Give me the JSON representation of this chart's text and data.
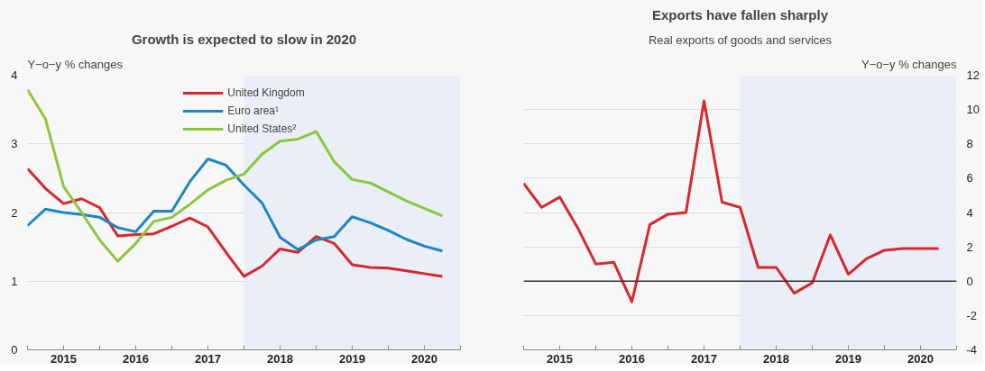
{
  "chart_data": [
    {
      "type": "line",
      "title": "Growth is expected to slow in 2020",
      "ylabel": "Y−o−y % changes",
      "legend": "top",
      "grid": "y",
      "line_style": "solid",
      "marker": "none",
      "x": [
        2015,
        2015.25,
        2015.5,
        2015.75,
        2016,
        2016.25,
        2016.5,
        2016.75,
        2017,
        2017.25,
        2017.5,
        2017.75,
        2018,
        2018.25,
        2018.5,
        2018.75,
        2019,
        2019.25,
        2019.5,
        2019.75,
        2020,
        2020.25,
        2020.5,
        2020.75
      ],
      "xlim": [
        2015,
        2021
      ],
      "xticks": [
        {
          "value": 2015,
          "label": null
        },
        {
          "value": 2015.5,
          "label": "2015"
        },
        {
          "value": 2016,
          "label": null
        },
        {
          "value": 2016.5,
          "label": "2016"
        },
        {
          "value": 2017,
          "label": null
        },
        {
          "value": 2017.5,
          "label": "2017"
        },
        {
          "value": 2018,
          "label": null
        },
        {
          "value": 2018.5,
          "label": "2018"
        },
        {
          "value": 2019,
          "label": null
        },
        {
          "value": 2019.5,
          "label": "2019"
        },
        {
          "value": 2020,
          "label": null
        },
        {
          "value": 2020.5,
          "label": "2020"
        },
        {
          "value": 2021,
          "label": null
        }
      ],
      "ylim": [
        0,
        4
      ],
      "yticks": [
        0,
        1,
        2,
        3,
        4
      ],
      "bands": [
        {
          "axis": "x",
          "from": 2018,
          "to": 2021,
          "label": null,
          "color": "#e9eef7"
        }
      ],
      "series": [
        {
          "name": "United Kingdom",
          "color": "#d7272f",
          "values": [
            2.64,
            2.35,
            2.13,
            2.2,
            2.07,
            1.66,
            1.68,
            1.69,
            1.8,
            1.92,
            1.79,
            1.42,
            1.07,
            1.22,
            1.47,
            1.42,
            1.65,
            1.55,
            1.24,
            1.2,
            1.19,
            1.15,
            1.11,
            1.07
          ]
        },
        {
          "name": "Euro area¹",
          "color": "#1f87c0",
          "values": [
            1.81,
            2.05,
            2.0,
            1.97,
            1.93,
            1.78,
            1.72,
            2.02,
            2.02,
            2.45,
            2.78,
            2.69,
            2.4,
            2.14,
            1.64,
            1.46,
            1.6,
            1.65,
            1.94,
            1.85,
            1.74,
            1.61,
            1.51,
            1.44
          ]
        },
        {
          "name": "United States²",
          "color": "#8cc63f",
          "values": [
            3.79,
            3.36,
            2.38,
            2.0,
            1.6,
            1.29,
            1.55,
            1.87,
            1.93,
            2.12,
            2.33,
            2.47,
            2.56,
            2.85,
            3.04,
            3.07,
            3.18,
            2.74,
            2.48,
            2.43,
            2.3,
            2.17,
            2.06,
            1.95
          ]
        }
      ]
    },
    {
      "type": "line",
      "title": "Exports have fallen sharply",
      "subtitle": "Real exports of goods and services",
      "ylabel": "Y−o−y % changes",
      "legend": false,
      "grid": "y",
      "line_style": "solid",
      "marker": "none",
      "x": [
        2015,
        2015.25,
        2015.5,
        2015.75,
        2016,
        2016.25,
        2016.5,
        2016.75,
        2017,
        2017.25,
        2017.5,
        2017.75,
        2018,
        2018.25,
        2018.5,
        2018.75,
        2019,
        2019.25,
        2019.5,
        2019.75,
        2020,
        2020.25,
        2020.5,
        2020.75
      ],
      "xlim": [
        2015,
        2021
      ],
      "xticks": [
        {
          "value": 2015,
          "label": null
        },
        {
          "value": 2015.5,
          "label": "2015"
        },
        {
          "value": 2016,
          "label": null
        },
        {
          "value": 2016.5,
          "label": "2016"
        },
        {
          "value": 2017,
          "label": null
        },
        {
          "value": 2017.5,
          "label": "2017"
        },
        {
          "value": 2018,
          "label": null
        },
        {
          "value": 2018.5,
          "label": "2018"
        },
        {
          "value": 2019,
          "label": null
        },
        {
          "value": 2019.5,
          "label": "2019"
        },
        {
          "value": 2020,
          "label": null
        },
        {
          "value": 2020.5,
          "label": "2020"
        },
        {
          "value": 2021,
          "label": null
        }
      ],
      "ylim": [
        -4,
        12
      ],
      "yticks": [
        -4,
        -2,
        0,
        2,
        4,
        6,
        8,
        10,
        12
      ],
      "bands": [
        {
          "axis": "x",
          "from": 2018,
          "to": 2021,
          "label": null,
          "color": "#e9eef7"
        }
      ],
      "ref_lines": [
        {
          "axis": "y",
          "value": 0,
          "label": null,
          "color": "#333333",
          "line_style": "solid"
        }
      ],
      "series": [
        {
          "color": "#d7272f",
          "values": [
            5.7,
            4.3,
            4.9,
            3.1,
            1.0,
            1.1,
            -1.2,
            3.3,
            3.9,
            4.0,
            10.5,
            4.6,
            4.3,
            0.8,
            0.8,
            -0.7,
            -0.1,
            2.7,
            0.4,
            1.3,
            1.8,
            1.9,
            1.9,
            1.9
          ]
        }
      ]
    }
  ]
}
